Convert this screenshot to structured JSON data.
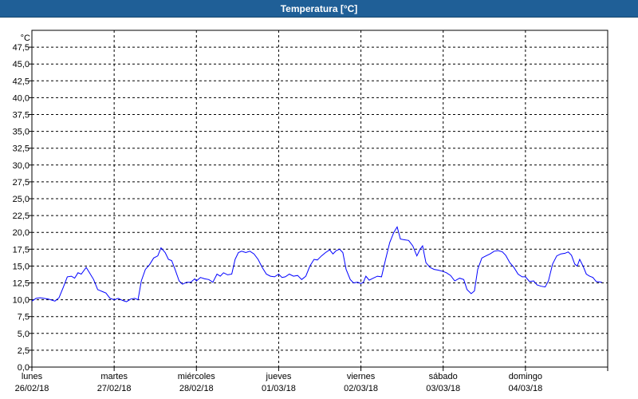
{
  "window": {
    "title": "Temperatura [°C]"
  },
  "colors": {
    "title_bar": "#1f5f97",
    "title_text": "#ffffff",
    "line": "#0000ff",
    "grid": "#000000",
    "background": "#ffffff"
  },
  "chart_data": {
    "type": "line",
    "title": "Temperatura [°C]",
    "ylabel": "°C",
    "ylim": [
      0,
      50
    ],
    "xlim": [
      0,
      7
    ],
    "grid": true,
    "y_ticks": [
      "0,0",
      "2,5",
      "5,0",
      "7,5",
      "10,0",
      "12,5",
      "15,0",
      "17,5",
      "20,0",
      "22,5",
      "25,0",
      "27,5",
      "30,0",
      "32,5",
      "35,0",
      "37,5",
      "40,0",
      "42,5",
      "45,0",
      "47,5"
    ],
    "x_ticks": [
      {
        "day": "lunes",
        "date": "26/02/18"
      },
      {
        "day": "martes",
        "date": "27/02/18"
      },
      {
        "day": "miércoles",
        "date": "28/02/18"
      },
      {
        "day": "jueves",
        "date": "01/03/18"
      },
      {
        "day": "viernes",
        "date": "02/03/18"
      },
      {
        "day": "sábado",
        "date": "03/03/18"
      },
      {
        "day": "domingo",
        "date": "04/03/18"
      }
    ],
    "series": [
      {
        "values": [
          [
            0.0,
            9.8
          ],
          [
            0.05,
            10.2
          ],
          [
            0.1,
            10.3
          ],
          [
            0.2,
            10.1
          ],
          [
            0.28,
            9.8
          ],
          [
            0.33,
            10.3
          ],
          [
            0.38,
            11.8
          ],
          [
            0.43,
            13.4
          ],
          [
            0.48,
            13.5
          ],
          [
            0.52,
            13.2
          ],
          [
            0.56,
            14.0
          ],
          [
            0.6,
            13.8
          ],
          [
            0.66,
            14.8
          ],
          [
            0.7,
            14.0
          ],
          [
            0.75,
            13.0
          ],
          [
            0.8,
            11.5
          ],
          [
            0.86,
            11.2
          ],
          [
            0.9,
            11.0
          ],
          [
            0.95,
            10.2
          ],
          [
            1.0,
            10.0
          ],
          [
            1.05,
            10.2
          ],
          [
            1.1,
            9.9
          ],
          [
            1.15,
            9.7
          ],
          [
            1.2,
            10.1
          ],
          [
            1.25,
            10.2
          ],
          [
            1.29,
            10.0
          ],
          [
            1.33,
            12.8
          ],
          [
            1.38,
            14.5
          ],
          [
            1.43,
            15.2
          ],
          [
            1.48,
            16.2
          ],
          [
            1.53,
            16.5
          ],
          [
            1.57,
            17.7
          ],
          [
            1.62,
            17.0
          ],
          [
            1.66,
            16.0
          ],
          [
            1.7,
            15.8
          ],
          [
            1.74,
            14.5
          ],
          [
            1.79,
            12.8
          ],
          [
            1.83,
            12.3
          ],
          [
            1.88,
            12.6
          ],
          [
            1.93,
            12.6
          ],
          [
            1.98,
            13.1
          ],
          [
            2.0,
            12.8
          ],
          [
            2.05,
            13.3
          ],
          [
            2.1,
            13.1
          ],
          [
            2.15,
            13.0
          ],
          [
            2.2,
            12.6
          ],
          [
            2.25,
            13.8
          ],
          [
            2.29,
            13.5
          ],
          [
            2.33,
            14.0
          ],
          [
            2.38,
            13.7
          ],
          [
            2.43,
            13.8
          ],
          [
            2.47,
            16.0
          ],
          [
            2.51,
            17.0
          ],
          [
            2.55,
            17.2
          ],
          [
            2.6,
            17.0
          ],
          [
            2.65,
            17.2
          ],
          [
            2.7,
            16.8
          ],
          [
            2.75,
            16.0
          ],
          [
            2.8,
            14.8
          ],
          [
            2.85,
            13.8
          ],
          [
            2.9,
            13.5
          ],
          [
            2.95,
            13.4
          ],
          [
            3.0,
            13.8
          ],
          [
            3.04,
            13.3
          ],
          [
            3.08,
            13.4
          ],
          [
            3.13,
            13.8
          ],
          [
            3.18,
            13.5
          ],
          [
            3.23,
            13.6
          ],
          [
            3.28,
            13.0
          ],
          [
            3.33,
            13.5
          ],
          [
            3.38,
            15.0
          ],
          [
            3.43,
            16.0
          ],
          [
            3.47,
            15.9
          ],
          [
            3.52,
            16.5
          ],
          [
            3.57,
            17.0
          ],
          [
            3.62,
            17.4
          ],
          [
            3.66,
            16.8
          ],
          [
            3.7,
            17.3
          ],
          [
            3.74,
            17.5
          ],
          [
            3.78,
            17.0
          ],
          [
            3.82,
            14.5
          ],
          [
            3.87,
            13.0
          ],
          [
            3.91,
            12.5
          ],
          [
            3.96,
            12.6
          ],
          [
            4.0,
            12.4
          ],
          [
            4.03,
            12.6
          ],
          [
            4.06,
            13.5
          ],
          [
            4.1,
            12.9
          ],
          [
            4.15,
            13.2
          ],
          [
            4.2,
            13.5
          ],
          [
            4.25,
            13.4
          ],
          [
            4.3,
            16.0
          ],
          [
            4.35,
            18.5
          ],
          [
            4.4,
            20.0
          ],
          [
            4.44,
            20.8
          ],
          [
            4.48,
            19.0
          ],
          [
            4.53,
            18.9
          ],
          [
            4.58,
            18.8
          ],
          [
            4.63,
            18.0
          ],
          [
            4.68,
            16.5
          ],
          [
            4.72,
            17.5
          ],
          [
            4.75,
            18.0
          ],
          [
            4.79,
            15.5
          ],
          [
            4.84,
            14.8
          ],
          [
            4.89,
            14.5
          ],
          [
            4.94,
            14.4
          ],
          [
            5.0,
            14.2
          ],
          [
            5.04,
            14.0
          ],
          [
            5.09,
            13.6
          ],
          [
            5.14,
            12.8
          ],
          [
            5.2,
            13.2
          ],
          [
            5.25,
            13.0
          ],
          [
            5.29,
            11.5
          ],
          [
            5.34,
            10.9
          ],
          [
            5.38,
            11.3
          ],
          [
            5.42,
            14.5
          ],
          [
            5.47,
            16.2
          ],
          [
            5.52,
            16.5
          ],
          [
            5.57,
            16.8
          ],
          [
            5.62,
            17.2
          ],
          [
            5.67,
            17.3
          ],
          [
            5.72,
            17.1
          ],
          [
            5.76,
            16.6
          ],
          [
            5.81,
            15.5
          ],
          [
            5.86,
            14.8
          ],
          [
            5.91,
            13.8
          ],
          [
            5.96,
            13.4
          ],
          [
            6.0,
            13.4
          ],
          [
            6.05,
            12.7
          ],
          [
            6.1,
            12.8
          ],
          [
            6.14,
            12.2
          ],
          [
            6.19,
            12.0
          ],
          [
            6.24,
            11.9
          ],
          [
            6.28,
            12.8
          ],
          [
            6.33,
            15.3
          ],
          [
            6.38,
            16.5
          ],
          [
            6.43,
            16.8
          ],
          [
            6.48,
            16.9
          ],
          [
            6.52,
            17.1
          ],
          [
            6.56,
            16.6
          ],
          [
            6.6,
            15.3
          ],
          [
            6.63,
            15.0
          ],
          [
            6.66,
            16.0
          ],
          [
            6.7,
            15.0
          ],
          [
            6.74,
            13.8
          ],
          [
            6.78,
            13.5
          ],
          [
            6.82,
            13.3
          ],
          [
            6.86,
            12.7
          ],
          [
            6.93,
            12.6
          ]
        ]
      }
    ]
  }
}
